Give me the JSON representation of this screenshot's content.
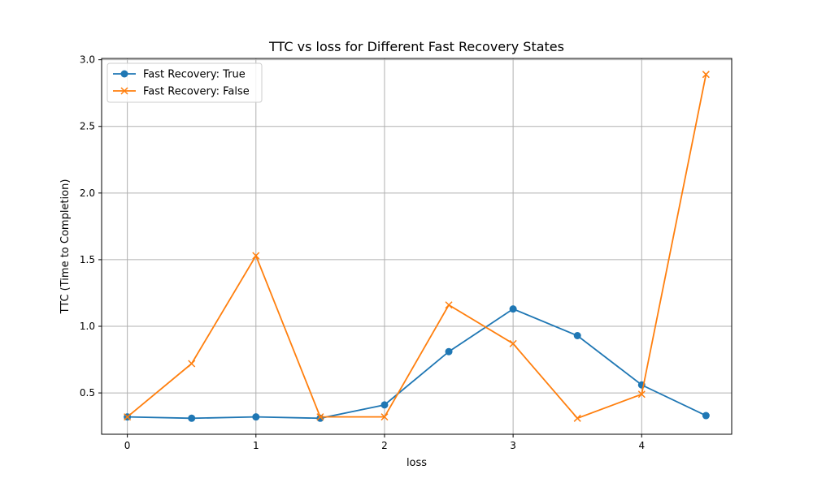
{
  "chart_data": {
    "type": "line",
    "title": "TTC vs loss for Different Fast Recovery States",
    "xlabel": "loss",
    "ylabel": "TTC (Time to Completion)",
    "xlim": [
      -0.2,
      4.7
    ],
    "ylim": [
      0.19,
      3.01
    ],
    "x_ticks": [
      0,
      1,
      2,
      3,
      4
    ],
    "y_ticks": [
      0.5,
      1.0,
      1.5,
      2.0,
      2.5,
      3.0
    ],
    "grid": true,
    "legend_position": "top-left",
    "x": [
      0,
      0.5,
      1,
      1.5,
      2,
      2.5,
      3,
      3.5,
      4,
      4.5
    ],
    "series": [
      {
        "name": "Fast Recovery: True",
        "color": "#1f77b4",
        "marker": "circle",
        "values": [
          0.32,
          0.31,
          0.32,
          0.31,
          0.41,
          0.81,
          1.13,
          0.93,
          0.56,
          0.33
        ]
      },
      {
        "name": "Fast Recovery: False",
        "color": "#ff7f0e",
        "marker": "x",
        "values": [
          0.32,
          0.72,
          1.53,
          0.32,
          0.32,
          1.16,
          0.87,
          0.31,
          0.49,
          2.89
        ]
      }
    ]
  }
}
